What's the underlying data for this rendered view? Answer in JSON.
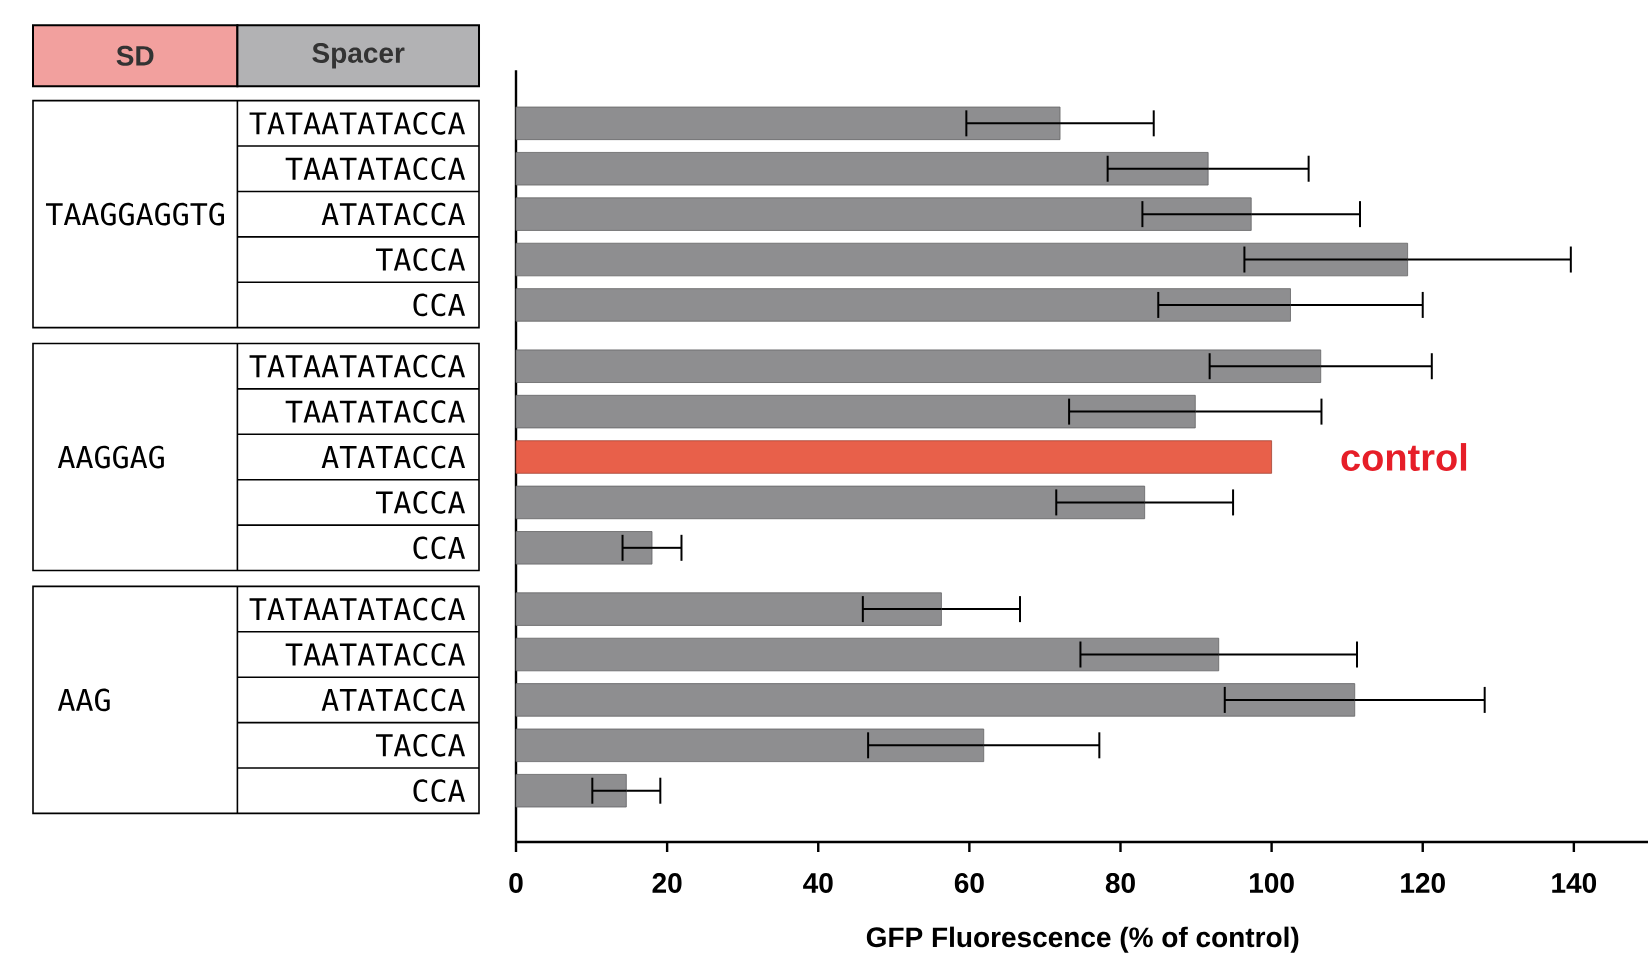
{
  "chart_data": {
    "type": "bar",
    "orientation": "horizontal",
    "categories": [
      "TATAATATACCA",
      "TAATATACCA",
      "ATATACCA",
      "TACCA",
      "CCA",
      "TATAATATACCA",
      "TAATATACCA",
      "ATATACCA",
      "TACCA",
      "CCA",
      "TATAATATACCA",
      "TAATATACCA",
      "ATATACCA",
      "TACCA",
      "CCA"
    ],
    "values": [
      72.0,
      91.6,
      97.3,
      118.0,
      102.5,
      106.5,
      89.9,
      100,
      83.2,
      18.0,
      56.3,
      93.0,
      111.0,
      61.9,
      14.6
    ],
    "errors": [
      12.4,
      13.3,
      14.4,
      21.6,
      17.5,
      14.7,
      16.7,
      null,
      11.7,
      3.9,
      10.4,
      18.3,
      17.2,
      15.3,
      4.5
    ],
    "colors": [
      "#8e8e90",
      "#8e8e90",
      "#8e8e90",
      "#8e8e90",
      "#8e8e90",
      "#8e8e90",
      "#8e8e90",
      "#e8604a",
      "#8e8e90",
      "#8e8e90",
      "#8e8e90",
      "#8e8e90",
      "#8e8e90",
      "#8e8e90",
      "#8e8e90"
    ],
    "xlim": [
      0,
      150
    ],
    "xticks": [
      0,
      20,
      40,
      60,
      80,
      100,
      120,
      140
    ],
    "xlabel": "GFP Fluorescence (% of control)",
    "annotations": [
      "SD",
      "Spacer",
      "TAAGGAGGTG",
      "AAGGAG",
      "AAG",
      "control"
    ]
  }
}
